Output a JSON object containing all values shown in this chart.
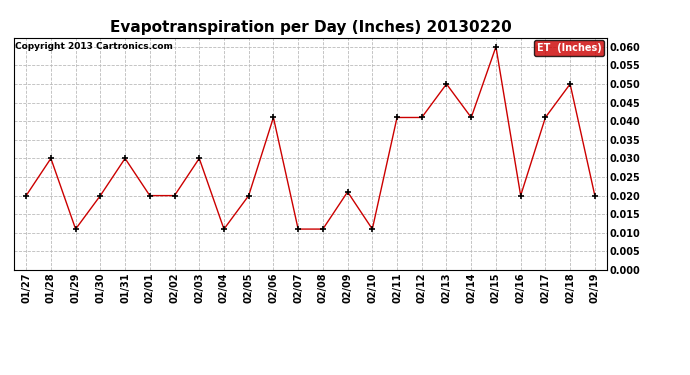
{
  "title": "Evapotranspiration per Day (Inches) 20130220",
  "copyright": "Copyright 2013 Cartronics.com",
  "legend_label": "ET  (Inches)",
  "dates": [
    "01/27",
    "01/28",
    "01/29",
    "01/30",
    "01/31",
    "02/01",
    "02/02",
    "02/03",
    "02/04",
    "02/05",
    "02/06",
    "02/07",
    "02/08",
    "02/09",
    "02/10",
    "02/11",
    "02/12",
    "02/13",
    "02/14",
    "02/15",
    "02/16",
    "02/17",
    "02/18",
    "02/19"
  ],
  "values": [
    0.02,
    0.03,
    0.011,
    0.02,
    0.03,
    0.02,
    0.02,
    0.03,
    0.011,
    0.02,
    0.041,
    0.011,
    0.011,
    0.021,
    0.011,
    0.041,
    0.041,
    0.05,
    0.041,
    0.06,
    0.02,
    0.041,
    0.05,
    0.02
  ],
  "ylim": [
    0.0,
    0.0625
  ],
  "yticks": [
    0.0,
    0.005,
    0.01,
    0.015,
    0.02,
    0.025,
    0.03,
    0.035,
    0.04,
    0.045,
    0.05,
    0.055,
    0.06
  ],
  "line_color": "#cc0000",
  "marker_color": "#000000",
  "bg_color": "#ffffff",
  "grid_color": "#bbbbbb",
  "title_fontsize": 11,
  "label_fontsize": 8,
  "tick_fontsize": 7,
  "legend_bg": "#cc0000",
  "legend_text_color": "#ffffff"
}
